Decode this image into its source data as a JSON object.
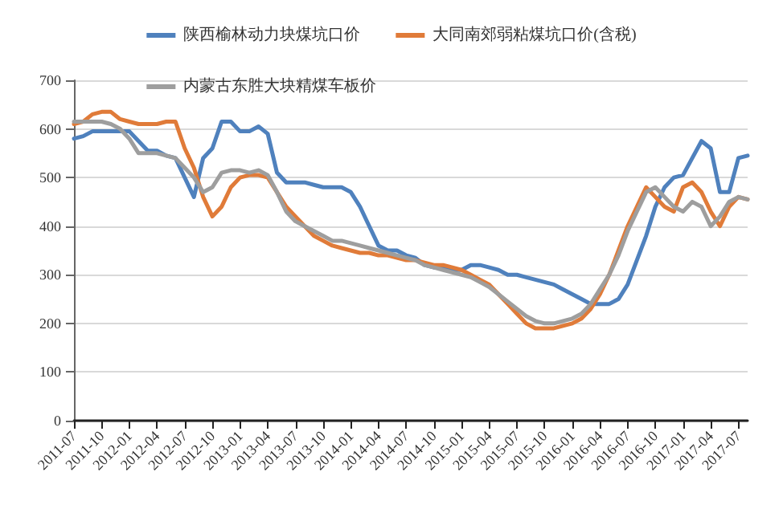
{
  "chart_data": {
    "type": "line",
    "categories": [
      "2011-07",
      null,
      null,
      "2011-10",
      null,
      null,
      "2012-01",
      null,
      null,
      "2012-04",
      null,
      null,
      "2012-07",
      null,
      null,
      "2012-10",
      null,
      null,
      "2013-01",
      null,
      null,
      "2013-04",
      null,
      null,
      "2013-07",
      null,
      null,
      "2013-10",
      null,
      null,
      "2014-01",
      null,
      null,
      "2014-04",
      null,
      null,
      "2014-07",
      null,
      null,
      "2014-10",
      null,
      null,
      "2015-01",
      null,
      null,
      "2015-04",
      null,
      null,
      "2015-07",
      null,
      null,
      "2015-10",
      null,
      null,
      "2016-01",
      null,
      null,
      "2016-04",
      null,
      null,
      "2016-07",
      null,
      null,
      "2016-10",
      null,
      null,
      "2017-01",
      null,
      null,
      "2017-04",
      null,
      null,
      "2017-07",
      null
    ],
    "series": [
      {
        "name": "陕西榆林动力块煤坑口价",
        "color": "#4f81bd",
        "values": [
          580,
          585,
          595,
          595,
          595,
          595,
          595,
          575,
          555,
          555,
          545,
          540,
          500,
          460,
          540,
          560,
          615,
          615,
          595,
          595,
          605,
          590,
          510,
          490,
          490,
          490,
          485,
          480,
          480,
          480,
          470,
          440,
          400,
          360,
          350,
          350,
          340,
          335,
          320,
          315,
          315,
          310,
          310,
          320,
          320,
          315,
          310,
          300,
          300,
          295,
          290,
          285,
          280,
          270,
          260,
          250,
          240,
          240,
          240,
          250,
          280,
          330,
          380,
          440,
          480,
          500,
          505,
          540,
          575,
          560,
          470,
          470,
          540,
          545
        ]
      },
      {
        "name": "大同南郊弱粘煤坑口价(含税)",
        "color": "#e07b39",
        "values": [
          610,
          615,
          630,
          635,
          635,
          620,
          615,
          610,
          610,
          610,
          615,
          615,
          560,
          520,
          460,
          420,
          440,
          480,
          500,
          505,
          505,
          500,
          470,
          440,
          420,
          400,
          380,
          370,
          360,
          355,
          350,
          345,
          345,
          340,
          340,
          335,
          330,
          330,
          325,
          320,
          320,
          315,
          310,
          300,
          290,
          280,
          260,
          240,
          220,
          200,
          190,
          190,
          190,
          195,
          200,
          210,
          230,
          260,
          300,
          350,
          400,
          440,
          480,
          460,
          440,
          430,
          480,
          490,
          470,
          430,
          400,
          440,
          460,
          455
        ]
      },
      {
        "name": "内蒙古东胜大块精煤车板价",
        "color": "#9e9e9e",
        "values": [
          615,
          615,
          615,
          615,
          610,
          600,
          580,
          550,
          550,
          550,
          545,
          540,
          520,
          500,
          470,
          480,
          510,
          515,
          515,
          510,
          515,
          505,
          470,
          430,
          410,
          400,
          390,
          380,
          370,
          370,
          365,
          360,
          355,
          350,
          345,
          340,
          335,
          330,
          320,
          315,
          310,
          305,
          300,
          295,
          285,
          275,
          260,
          245,
          230,
          215,
          205,
          200,
          200,
          205,
          210,
          220,
          240,
          270,
          300,
          340,
          390,
          430,
          470,
          480,
          460,
          440,
          430,
          450,
          440,
          400,
          420,
          450,
          460,
          455
        ]
      }
    ],
    "ylim": [
      0,
      700
    ],
    "yticks": [
      0,
      100,
      200,
      300,
      400,
      500,
      600,
      700
    ],
    "grid": "y",
    "legend": "top",
    "marker": "none",
    "line_style": "solid"
  }
}
